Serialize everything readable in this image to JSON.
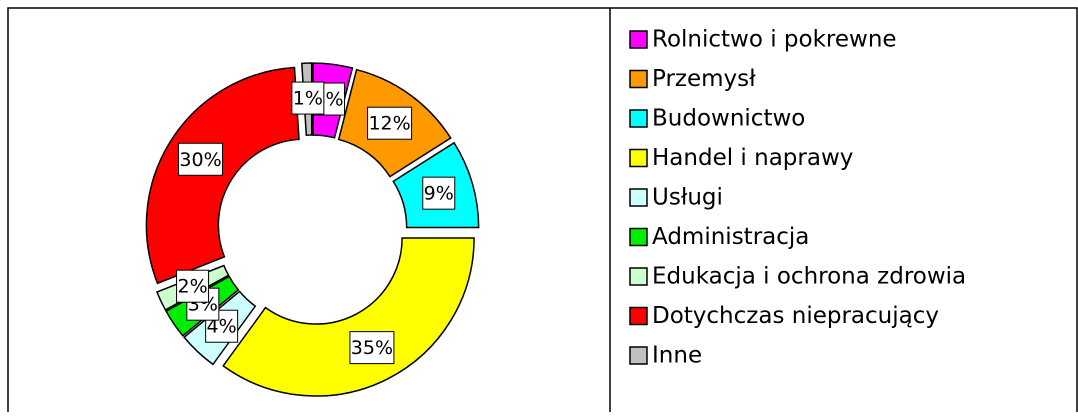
{
  "chart_data": {
    "type": "donut",
    "categories": [
      "Rolnictwo i pokrewne",
      "Przemysł",
      "Budownictwo",
      "Handel i naprawy",
      "Usługi",
      "Administracja",
      "Edukacja i ochrona zdrowia",
      "Dotychczas niepracujący",
      "Inne"
    ],
    "values": [
      4,
      12,
      9,
      35,
      4,
      3,
      2,
      30,
      1
    ],
    "value_labels": [
      "4%",
      "12%",
      "9%",
      "35%",
      "4%",
      "3%",
      "2%",
      "30%",
      "1%"
    ],
    "colors": [
      "#ff00ff",
      "#ff9900",
      "#00ffff",
      "#ffff00",
      "#ccffff",
      "#00ee00",
      "#ccffcc",
      "#ff0000",
      "#c0c0c0"
    ],
    "legend": "right"
  }
}
